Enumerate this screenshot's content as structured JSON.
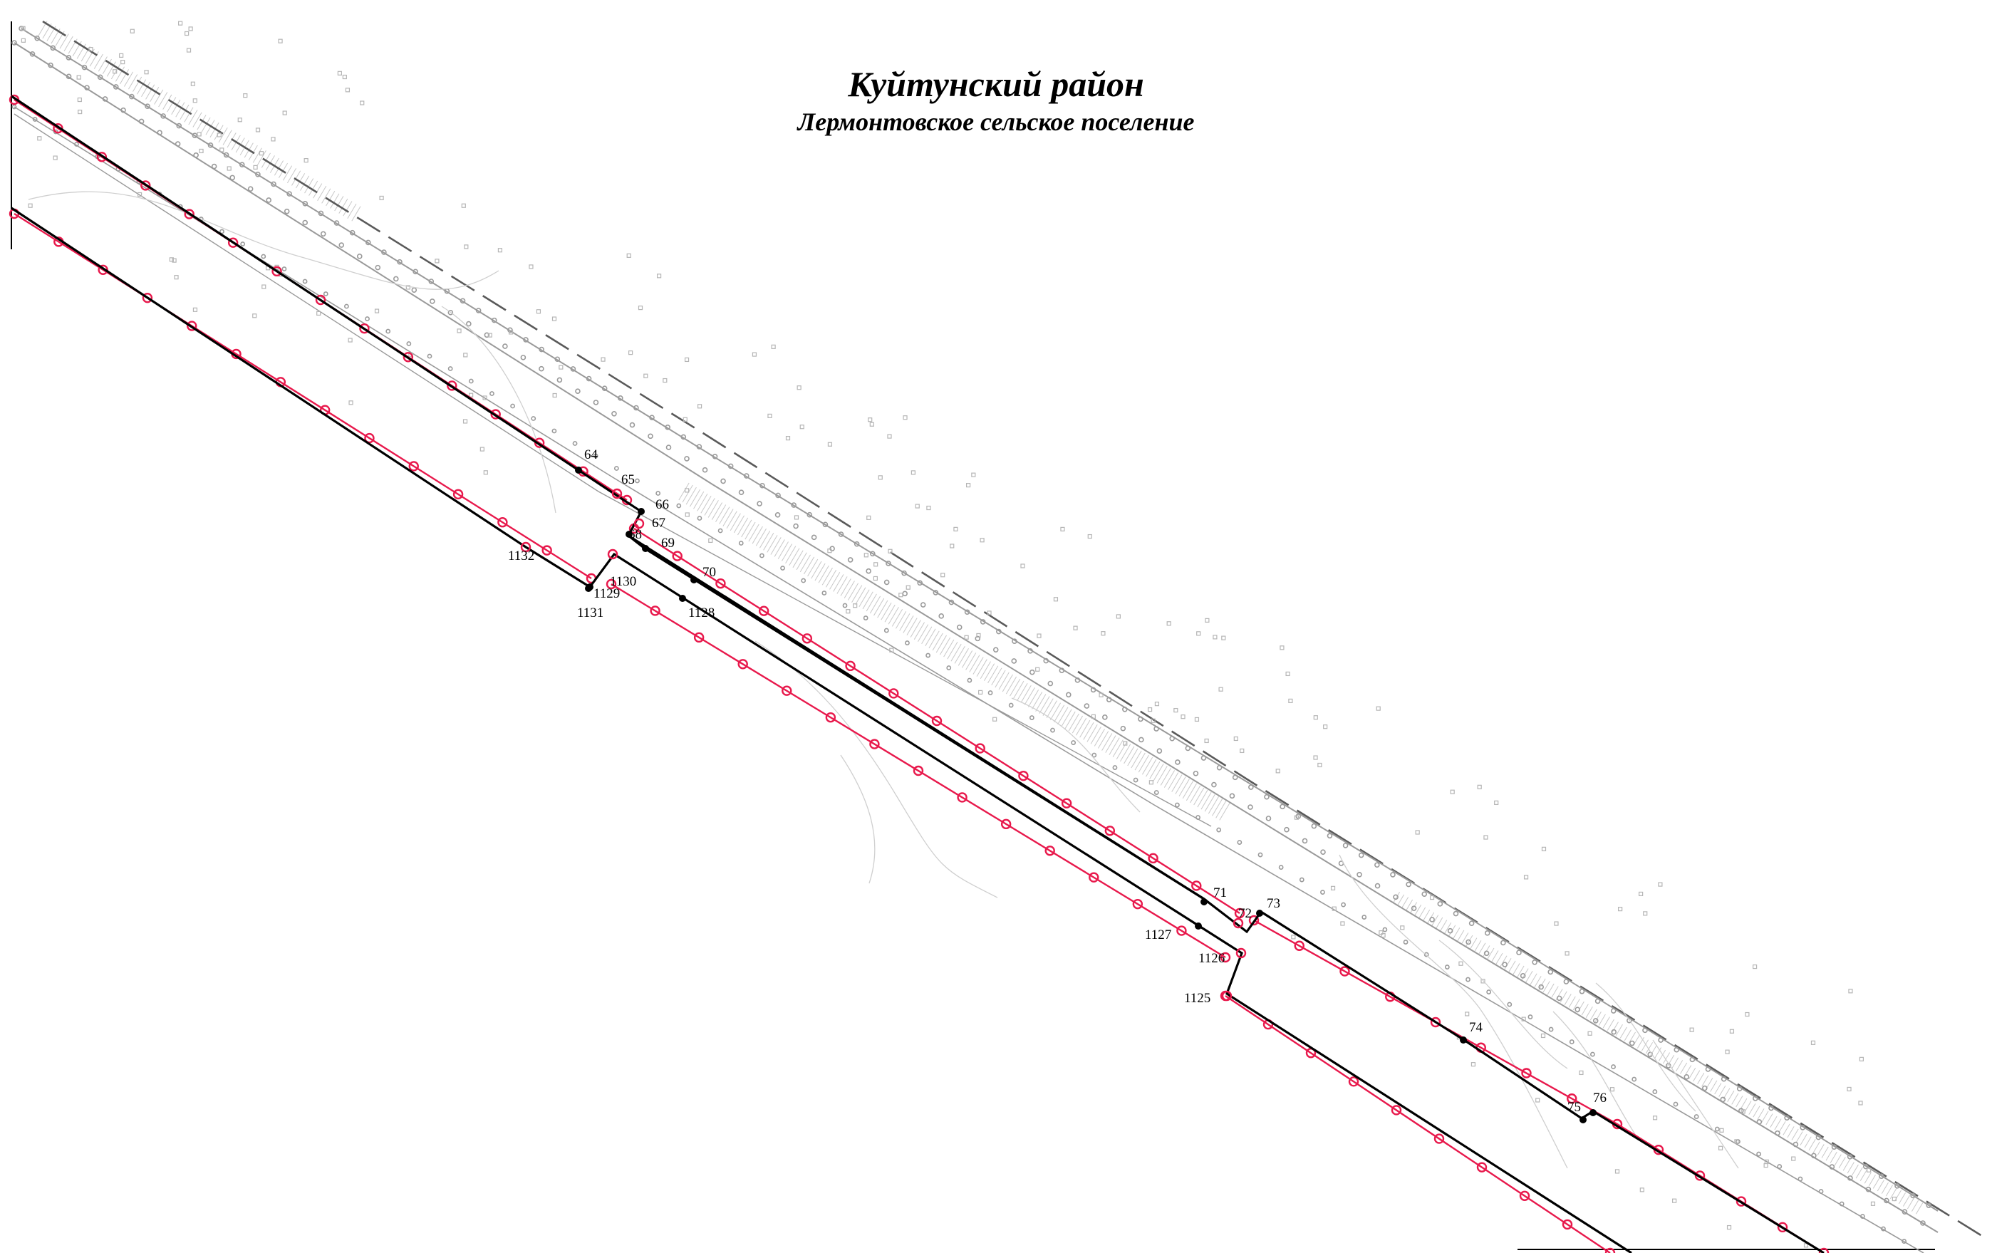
{
  "map": {
    "title": "Куйтунский район",
    "subtitle": "Лермонтовское сельское поселение"
  },
  "colors": {
    "boundary": "#000000",
    "red_line": "#e8194c",
    "road": "#9a9a9a",
    "hatch": "#c8c8c8",
    "background": "#ffffff"
  },
  "points": [
    {
      "id": "64",
      "label": "64"
    },
    {
      "id": "65",
      "label": "65"
    },
    {
      "id": "66",
      "label": "66"
    },
    {
      "id": "67",
      "label": "67"
    },
    {
      "id": "68",
      "label": "68"
    },
    {
      "id": "69",
      "label": "69"
    },
    {
      "id": "70",
      "label": "70"
    },
    {
      "id": "71",
      "label": "71"
    },
    {
      "id": "72",
      "label": "72"
    },
    {
      "id": "73",
      "label": "73"
    },
    {
      "id": "74",
      "label": "74"
    },
    {
      "id": "75",
      "label": "75"
    },
    {
      "id": "76",
      "label": "76"
    },
    {
      "id": "1125",
      "label": "1125"
    },
    {
      "id": "1126",
      "label": "1126"
    },
    {
      "id": "1127",
      "label": "1127"
    },
    {
      "id": "1128",
      "label": "1128"
    },
    {
      "id": "1129",
      "label": "1129"
    },
    {
      "id": "1130",
      "label": "1130"
    },
    {
      "id": "1131",
      "label": "1131"
    },
    {
      "id": "1132",
      "label": "1132"
    }
  ]
}
